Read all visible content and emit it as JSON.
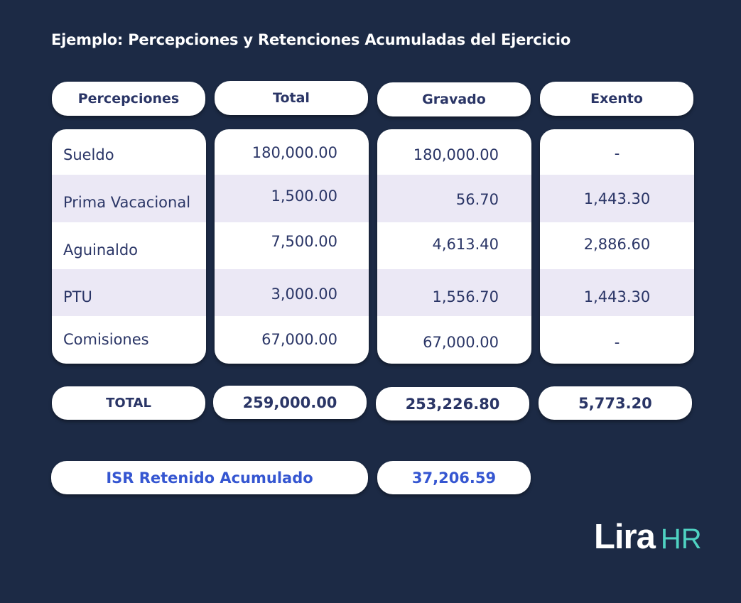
{
  "title": "Ejemplo: Percepciones y Retenciones Acumuladas del Ejercicio",
  "headers": [
    "Percepciones",
    "Total",
    "Gravado",
    "Exento"
  ],
  "rows": [
    {
      "concepto": "Sueldo",
      "total": "180,000.00",
      "gravado": "180,000.00",
      "exento": "-"
    },
    {
      "concepto": "Prima Vacacional",
      "total": "1,500.00",
      "gravado": "56.70",
      "exento": "1,443.30"
    },
    {
      "concepto": "Aguinaldo",
      "total": "7,500.00",
      "gravado": "4,613.40",
      "exento": "2,886.60"
    },
    {
      "concepto": "PTU",
      "total": "3,000.00",
      "gravado": "1,556.70",
      "exento": "1,443.30"
    },
    {
      "concepto": "Comisiones",
      "total": "67,000.00",
      "gravado": "67,000.00",
      "exento": "-"
    }
  ],
  "totals": {
    "label": "TOTAL",
    "total": "259,000.00",
    "gravado": "253,226.80",
    "exento": "5,773.20"
  },
  "isr": {
    "label": "ISR Retenido Acumulado",
    "value": "37,206.59"
  },
  "logo": {
    "part1": "Lira",
    "part2": "HR"
  },
  "colors": {
    "background": "#1c2a45",
    "text": "#2a3566",
    "accent": "#3556d1",
    "stripe": "#ebe8f5",
    "brand": "#4fd2c2"
  }
}
